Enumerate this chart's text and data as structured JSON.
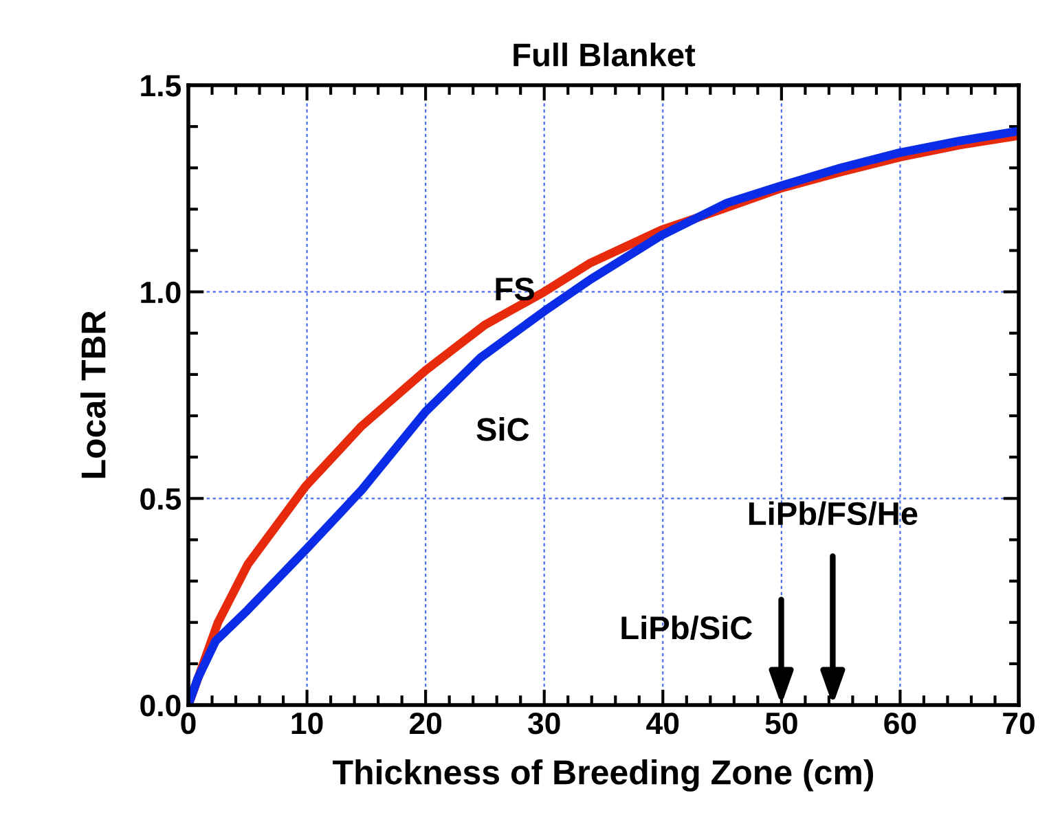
{
  "chart_data": {
    "type": "line",
    "title": "Full Blanket",
    "xlabel": "Thickness of Breeding Zone (cm)",
    "ylabel": "Local TBR",
    "series": [
      {
        "name": "FS",
        "color": "#e82a0c",
        "x": [
          0,
          1.5,
          2.5,
          5,
          9.9,
          14.6,
          20,
          25,
          30,
          33.9,
          39.9,
          45,
          49.9,
          55,
          60,
          65,
          70
        ],
        "values": [
          0,
          0.12,
          0.2,
          0.34,
          0.53,
          0.675,
          0.81,
          0.92,
          1.0,
          1.07,
          1.15,
          1.2,
          1.25,
          1.29,
          1.326,
          1.355,
          1.378
        ]
      },
      {
        "name": "SiC",
        "color": "#0a2ce6",
        "x": [
          0,
          0.8,
          2.3,
          5,
          9.9,
          14.6,
          20,
          24.6,
          30,
          33.9,
          39.9,
          45.4,
          49.9,
          55,
          60,
          65,
          70
        ],
        "values": [
          0,
          0.065,
          0.155,
          0.23,
          0.376,
          0.52,
          0.71,
          0.84,
          0.953,
          1.03,
          1.137,
          1.215,
          1.256,
          1.3,
          1.337,
          1.365,
          1.389
        ]
      }
    ],
    "xlim": [
      0,
      70
    ],
    "xticks": [
      0,
      10,
      20,
      30,
      40,
      50,
      60,
      70
    ],
    "ylim": [
      0,
      1.5
    ],
    "yticks": [
      {
        "value": 0,
        "label": "0.0"
      },
      {
        "value": 0.5,
        "label": "0.5"
      },
      {
        "value": 1.0,
        "label": "1.0"
      },
      {
        "value": 1.5,
        "label": "1.5"
      }
    ],
    "grid": true,
    "legend": false,
    "line_style": "solid",
    "marker": "none",
    "annotations": [
      "LiPb/SiC",
      "LiPb/FS/He"
    ]
  }
}
